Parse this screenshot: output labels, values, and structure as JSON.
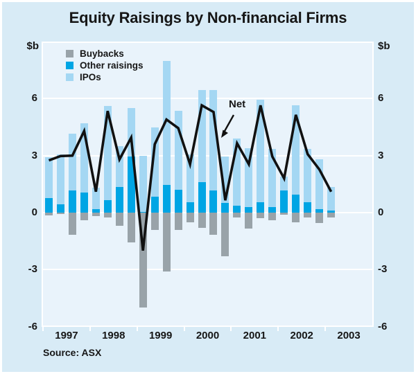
{
  "title": "Equity Raisings by Non-financial Firms",
  "unit_label_left": "$b",
  "unit_label_right": "$b",
  "source": "Source: ASX",
  "legend": {
    "buybacks_label": "Buybacks",
    "other_raisings_label": "Other raisings",
    "ipos_label": "IPOs"
  },
  "annotation": {
    "net_label": "Net"
  },
  "colors": {
    "background": "#d8ebf6",
    "plot_background": "#e9f3fb",
    "buybacks": "#99a3a9",
    "other_raisings": "#00a5e4",
    "ipos": "#a4d7f3",
    "net_line": "#111111",
    "gridline": "#ffffff",
    "text": "#161616"
  },
  "chart_data": {
    "type": "bar",
    "subtype": "stacked-bars-with-line",
    "title": "Equity Raisings by Non-financial Firms",
    "ylabel": "$b",
    "xlabel": "",
    "ylim": [
      -6,
      8.94
    ],
    "y_ticks": [
      6,
      3,
      0,
      -3,
      -6
    ],
    "gridline_values": [
      6,
      3,
      0,
      -3
    ],
    "grid": "horizontal-white",
    "legend_position": "top-left-inside",
    "x_year_labels": [
      "1997",
      "1998",
      "1999",
      "2000",
      "2001",
      "2002",
      "2003"
    ],
    "categories": [
      "1997Q1",
      "1997Q2",
      "1997Q3",
      "1997Q4",
      "1998Q1",
      "1998Q2",
      "1998Q3",
      "1998Q4",
      "1999Q1",
      "1999Q2",
      "1999Q3",
      "1999Q4",
      "2000Q1",
      "2000Q2",
      "2000Q3",
      "2000Q4",
      "2001Q1",
      "2001Q2",
      "2001Q3",
      "2001Q4",
      "2002Q1",
      "2002Q2",
      "2002Q3",
      "2002Q4",
      "2003Q1"
    ],
    "series": [
      {
        "name": "Buybacks",
        "type": "bar",
        "color_key": "buybacks",
        "values": [
          -0.15,
          -0.07,
          -1.15,
          -0.4,
          -0.2,
          -0.25,
          -0.7,
          -1.55,
          -5.0,
          -0.9,
          -3.1,
          -0.9,
          -0.5,
          -0.8,
          -1.15,
          -2.3,
          -0.25,
          -0.85,
          -0.3,
          -0.4,
          -0.1,
          -0.5,
          -0.27,
          -0.53,
          -0.25
        ]
      },
      {
        "name": "Other raisings",
        "type": "bar",
        "color_key": "other_raisings",
        "values": [
          0.75,
          0.45,
          1.15,
          1.05,
          0.2,
          0.65,
          1.35,
          2.95,
          0.05,
          0.85,
          1.45,
          1.2,
          0.55,
          1.6,
          1.15,
          0.5,
          0.35,
          0.3,
          0.55,
          0.3,
          1.15,
          0.95,
          0.55,
          0.18,
          0.1
        ]
      },
      {
        "name": "IPOs",
        "type": "bar",
        "color_key": "ipos",
        "values": [
          2.15,
          2.6,
          3.0,
          3.65,
          1.1,
          4.95,
          2.15,
          2.55,
          2.95,
          3.65,
          6.55,
          4.15,
          2.5,
          4.85,
          5.3,
          2.45,
          3.55,
          3.1,
          5.4,
          3.05,
          0.75,
          4.7,
          2.8,
          2.62,
          1.25
        ]
      },
      {
        "name": "Net",
        "type": "line",
        "color_key": "net_line",
        "values": [
          2.75,
          2.98,
          3.0,
          4.3,
          1.1,
          5.35,
          2.8,
          3.95,
          -2.0,
          3.6,
          4.9,
          4.45,
          2.55,
          5.65,
          5.3,
          0.65,
          3.65,
          2.55,
          5.65,
          2.95,
          1.8,
          5.15,
          3.08,
          2.27,
          1.1
        ]
      }
    ]
  }
}
